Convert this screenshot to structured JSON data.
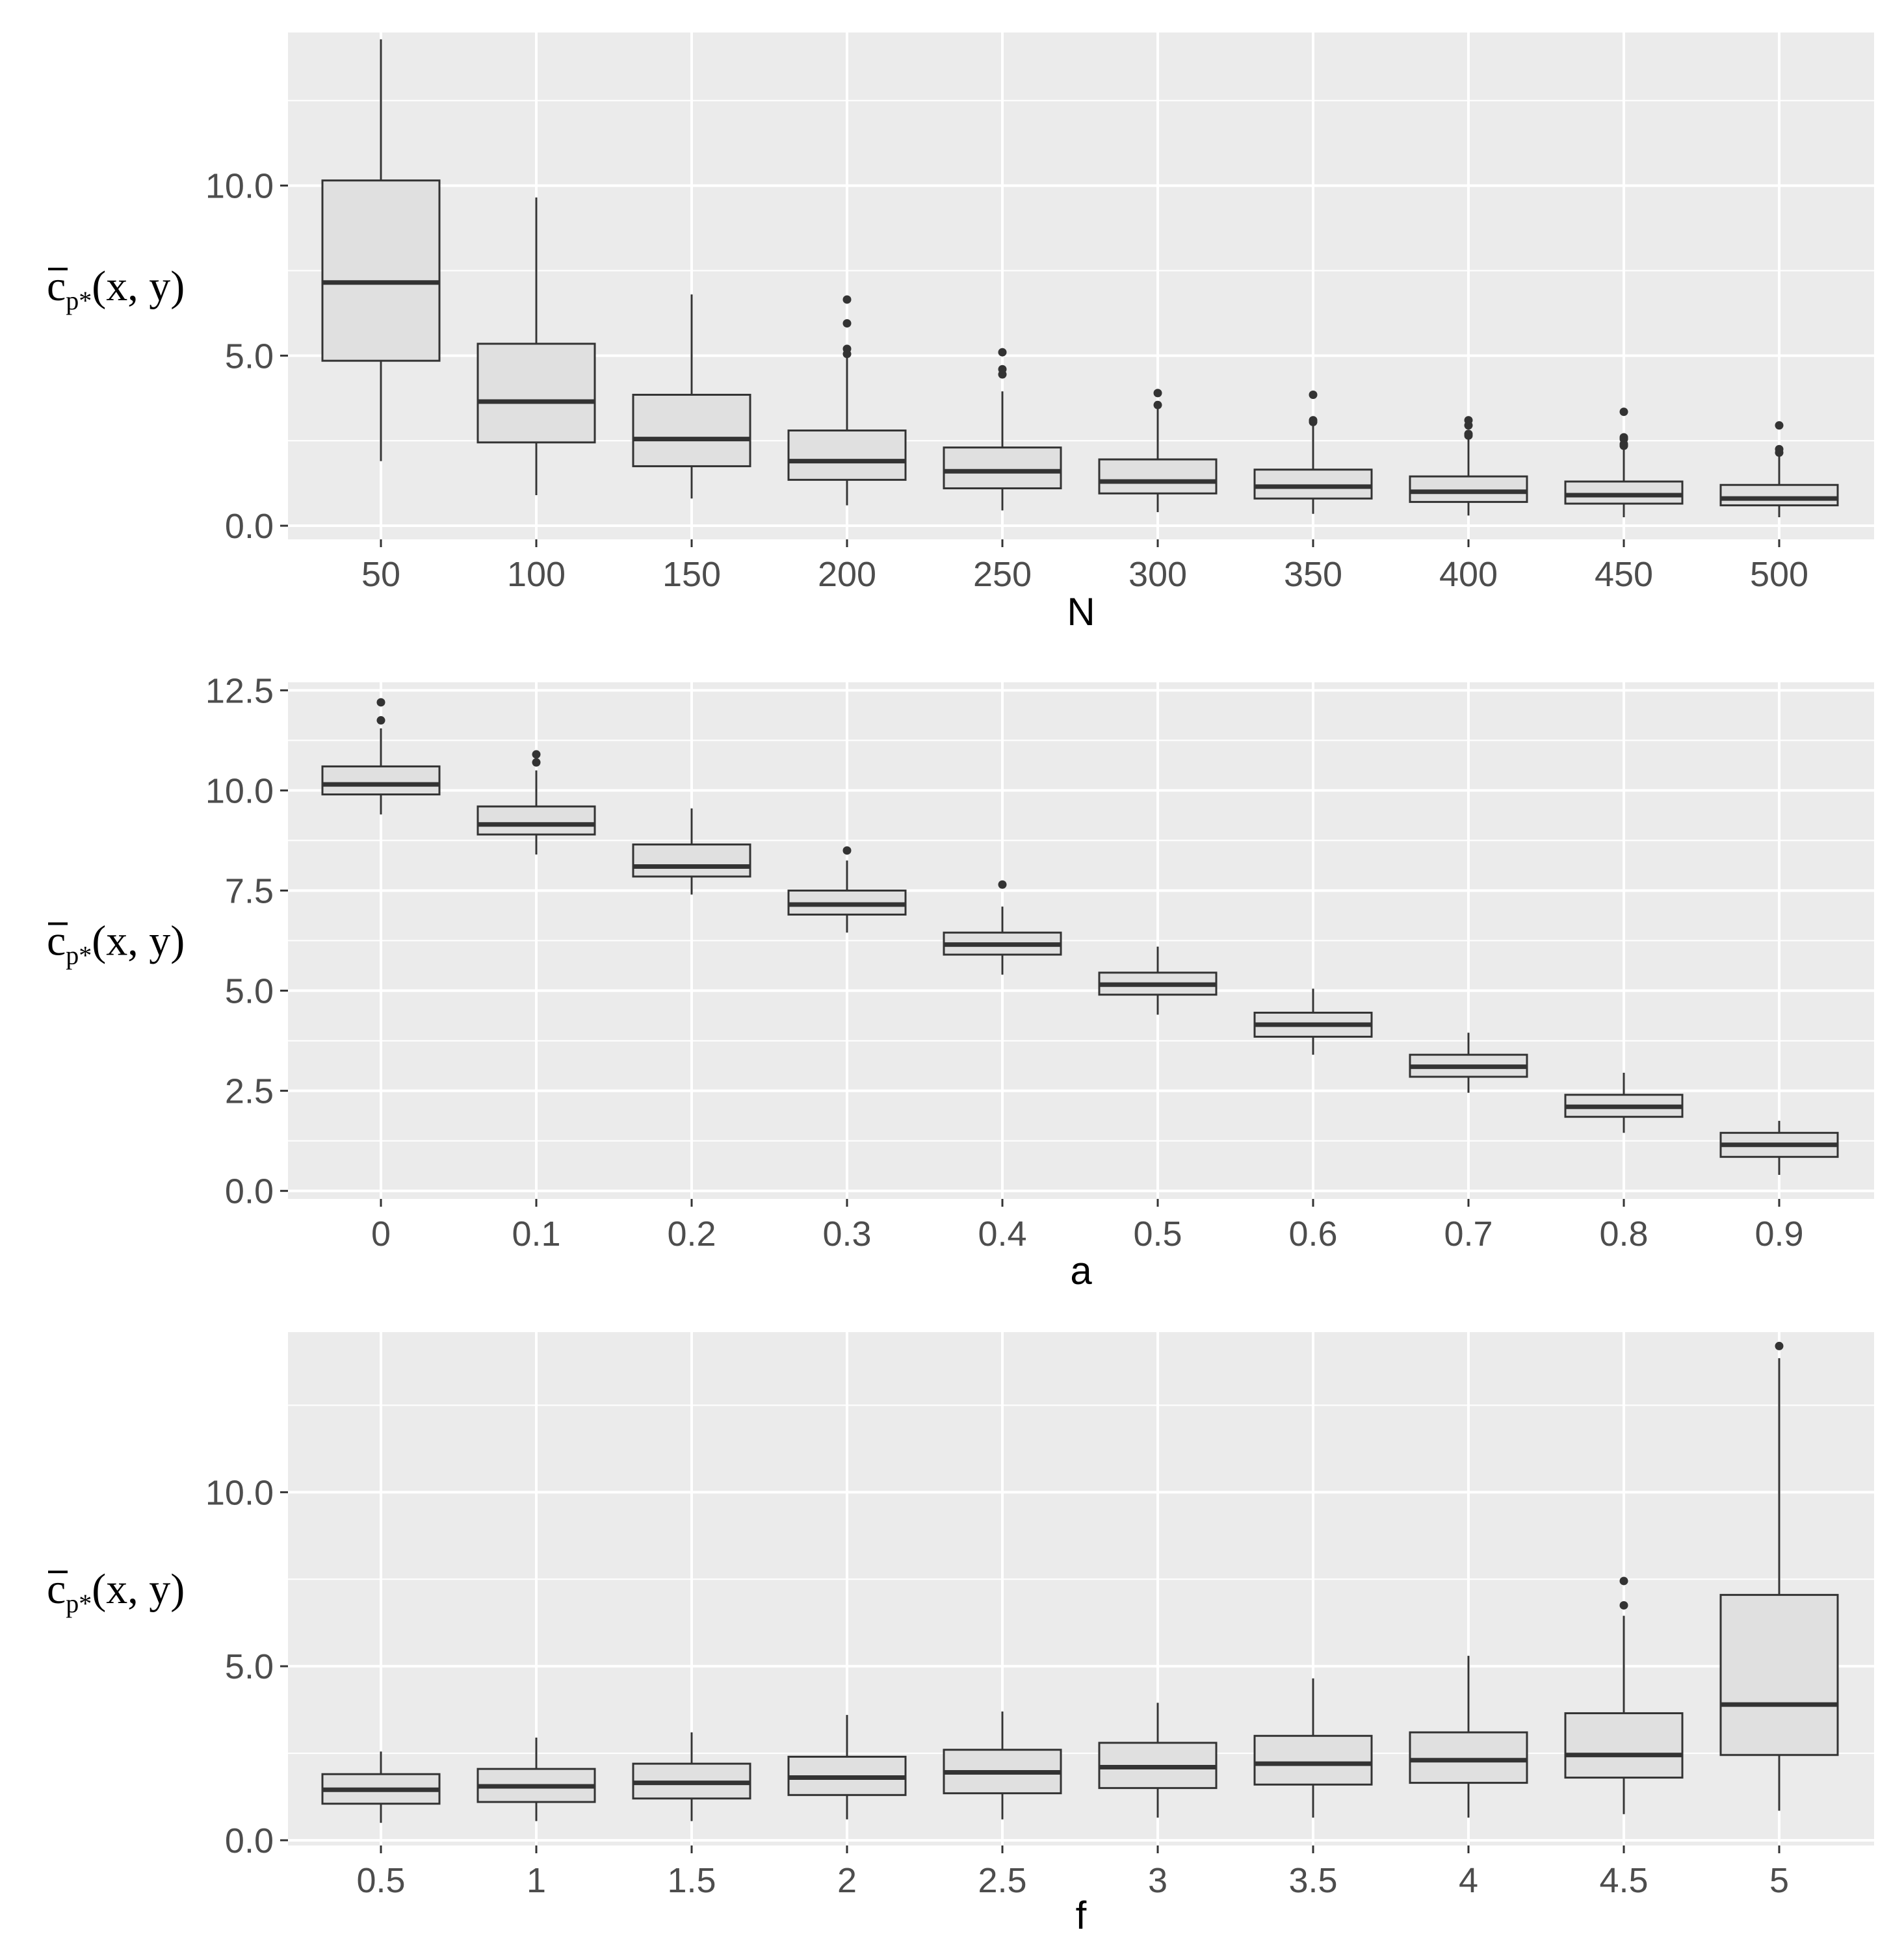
{
  "panel_background": "#ebebeb",
  "grid_color": "#ffffff",
  "box_fill": "#e0e0e0",
  "box_stroke": "#333333",
  "ylabel_parts": {
    "base": "c",
    "sub": "p*",
    "tail": "(x, y)"
  },
  "chart_data": [
    {
      "type": "boxplot",
      "xlabel": "N",
      "ylabel": "c̄p*(x, y)",
      "ylim": [
        -0.4,
        14.5
      ],
      "yticks": [
        0,
        5,
        10
      ],
      "ytick_labels": [
        "0.0",
        "5.0",
        "10.0"
      ],
      "categories": [
        "50",
        "100",
        "150",
        "200",
        "250",
        "300",
        "350",
        "400",
        "450",
        "500"
      ],
      "boxes": [
        {
          "min": 1.9,
          "q1": 4.85,
          "median": 7.15,
          "q3": 10.15,
          "max": 14.3,
          "outliers": []
        },
        {
          "min": 0.9,
          "q1": 2.45,
          "median": 3.65,
          "q3": 5.35,
          "max": 9.65,
          "outliers": []
        },
        {
          "min": 0.8,
          "q1": 1.75,
          "median": 2.55,
          "q3": 3.85,
          "max": 6.8,
          "outliers": []
        },
        {
          "min": 0.6,
          "q1": 1.35,
          "median": 1.9,
          "q3": 2.8,
          "max": 4.95,
          "outliers": [
            5.05,
            5.2,
            5.95,
            6.65
          ]
        },
        {
          "min": 0.45,
          "q1": 1.1,
          "median": 1.6,
          "q3": 2.3,
          "max": 3.95,
          "outliers": [
            4.45,
            4.6,
            5.1
          ]
        },
        {
          "min": 0.4,
          "q1": 0.95,
          "median": 1.3,
          "q3": 1.95,
          "max": 3.45,
          "outliers": [
            3.55,
            3.9
          ]
        },
        {
          "min": 0.35,
          "q1": 0.8,
          "median": 1.15,
          "q3": 1.65,
          "max": 2.95,
          "outliers": [
            3.05,
            3.1,
            3.85
          ]
        },
        {
          "min": 0.3,
          "q1": 0.7,
          "median": 1.0,
          "q3": 1.45,
          "max": 2.55,
          "outliers": [
            2.65,
            2.7,
            2.95,
            3.1
          ]
        },
        {
          "min": 0.25,
          "q1": 0.65,
          "median": 0.9,
          "q3": 1.3,
          "max": 2.25,
          "outliers": [
            2.35,
            2.4,
            2.55,
            2.6,
            3.35
          ]
        },
        {
          "min": 0.25,
          "q1": 0.6,
          "median": 0.8,
          "q3": 1.2,
          "max": 2.05,
          "outliers": [
            2.15,
            2.25,
            2.95
          ]
        }
      ]
    },
    {
      "type": "boxplot",
      "xlabel": "a",
      "ylabel": "c̄p*(x, y)",
      "ylim": [
        -0.2,
        12.7
      ],
      "yticks": [
        0,
        2.5,
        5,
        7.5,
        10,
        12.5
      ],
      "ytick_labels": [
        "0.0",
        "2.5",
        "5.0",
        "7.5",
        "10.0",
        "12.5"
      ],
      "categories": [
        "0",
        "0.1",
        "0.2",
        "0.3",
        "0.4",
        "0.5",
        "0.6",
        "0.7",
        "0.8",
        "0.9"
      ],
      "boxes": [
        {
          "min": 9.4,
          "q1": 9.9,
          "median": 10.15,
          "q3": 10.6,
          "max": 11.55,
          "outliers": [
            11.75,
            12.2
          ]
        },
        {
          "min": 8.4,
          "q1": 8.9,
          "median": 9.15,
          "q3": 9.6,
          "max": 10.5,
          "outliers": [
            10.7,
            10.9
          ]
        },
        {
          "min": 7.4,
          "q1": 7.85,
          "median": 8.1,
          "q3": 8.65,
          "max": 9.55,
          "outliers": []
        },
        {
          "min": 6.45,
          "q1": 6.9,
          "median": 7.15,
          "q3": 7.5,
          "max": 8.25,
          "outliers": [
            8.5
          ]
        },
        {
          "min": 5.4,
          "q1": 5.9,
          "median": 6.15,
          "q3": 6.45,
          "max": 7.1,
          "outliers": [
            7.65
          ]
        },
        {
          "min": 4.4,
          "q1": 4.9,
          "median": 5.15,
          "q3": 5.45,
          "max": 6.1,
          "outliers": []
        },
        {
          "min": 3.4,
          "q1": 3.85,
          "median": 4.15,
          "q3": 4.45,
          "max": 5.05,
          "outliers": []
        },
        {
          "min": 2.45,
          "q1": 2.85,
          "median": 3.1,
          "q3": 3.4,
          "max": 3.95,
          "outliers": []
        },
        {
          "min": 1.45,
          "q1": 1.85,
          "median": 2.1,
          "q3": 2.4,
          "max": 2.95,
          "outliers": []
        },
        {
          "min": 0.4,
          "q1": 0.85,
          "median": 1.15,
          "q3": 1.45,
          "max": 1.75,
          "outliers": []
        }
      ]
    },
    {
      "type": "boxplot",
      "xlabel": "f",
      "ylabel": "c̄p*(x, y)",
      "ylim": [
        -0.15,
        14.6
      ],
      "yticks": [
        0,
        5,
        10
      ],
      "ytick_labels": [
        "0.0",
        "5.0",
        "10.0"
      ],
      "categories": [
        "0.5",
        "1",
        "1.5",
        "2",
        "2.5",
        "3",
        "3.5",
        "4",
        "4.5",
        "5"
      ],
      "boxes": [
        {
          "min": 0.5,
          "q1": 1.05,
          "median": 1.45,
          "q3": 1.9,
          "max": 2.55,
          "outliers": []
        },
        {
          "min": 0.55,
          "q1": 1.1,
          "median": 1.55,
          "q3": 2.05,
          "max": 2.95,
          "outliers": []
        },
        {
          "min": 0.55,
          "q1": 1.2,
          "median": 1.65,
          "q3": 2.2,
          "max": 3.1,
          "outliers": []
        },
        {
          "min": 0.6,
          "q1": 1.3,
          "median": 1.8,
          "q3": 2.4,
          "max": 3.6,
          "outliers": []
        },
        {
          "min": 0.6,
          "q1": 1.35,
          "median": 1.95,
          "q3": 2.6,
          "max": 3.7,
          "outliers": []
        },
        {
          "min": 0.65,
          "q1": 1.5,
          "median": 2.1,
          "q3": 2.8,
          "max": 3.95,
          "outliers": []
        },
        {
          "min": 0.65,
          "q1": 1.6,
          "median": 2.2,
          "q3": 3.0,
          "max": 4.65,
          "outliers": []
        },
        {
          "min": 0.65,
          "q1": 1.65,
          "median": 2.3,
          "q3": 3.1,
          "max": 5.3,
          "outliers": []
        },
        {
          "min": 0.75,
          "q1": 1.8,
          "median": 2.45,
          "q3": 3.65,
          "max": 6.45,
          "outliers": [
            6.75,
            7.45
          ]
        },
        {
          "min": 0.85,
          "q1": 2.45,
          "median": 3.9,
          "q3": 7.05,
          "max": 13.85,
          "outliers": [
            14.2
          ]
        }
      ]
    }
  ]
}
